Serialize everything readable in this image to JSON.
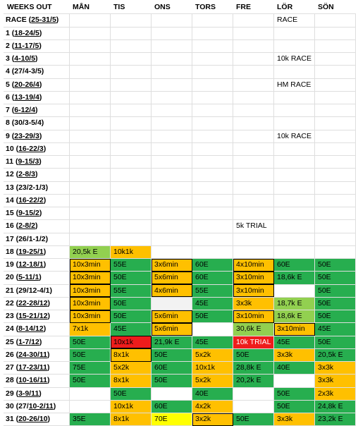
{
  "colors": {
    "dark_green": "#27ae4f",
    "light_green": "#92d050",
    "orange": "#ffc000",
    "red": "#ee1c1c",
    "yellow": "#ffff00",
    "light_gray": "#f2f2f2",
    "white": "#ffffff"
  },
  "headers": [
    "WEEKS OUT",
    "MÅN",
    "TIS",
    "ONS",
    "TORS",
    "FRE",
    "LÖR",
    "SÖN"
  ],
  "rows": [
    {
      "pre": "RACE (",
      "dates": "25-31/5",
      "post": ")",
      "cells": [
        {
          "t": ""
        },
        {
          "t": ""
        },
        {
          "t": ""
        },
        {
          "t": ""
        },
        {
          "t": ""
        },
        {
          "t": "RACE"
        },
        {
          "t": ""
        }
      ]
    },
    {
      "pre": "1 (",
      "dates": "18-24/5",
      "post": ")",
      "cells": [
        {
          "t": ""
        },
        {
          "t": ""
        },
        {
          "t": ""
        },
        {
          "t": ""
        },
        {
          "t": ""
        },
        {
          "t": ""
        },
        {
          "t": ""
        }
      ]
    },
    {
      "pre": "2 (",
      "dates": "11-17/5",
      "post": ")",
      "cells": [
        {
          "t": ""
        },
        {
          "t": ""
        },
        {
          "t": ""
        },
        {
          "t": ""
        },
        {
          "t": ""
        },
        {
          "t": ""
        },
        {
          "t": ""
        }
      ]
    },
    {
      "pre": "3 (",
      "dates": "4-10/5",
      "post": ")",
      "cells": [
        {
          "t": ""
        },
        {
          "t": ""
        },
        {
          "t": ""
        },
        {
          "t": ""
        },
        {
          "t": ""
        },
        {
          "t": "10k RACE"
        },
        {
          "t": ""
        }
      ]
    },
    {
      "pre": "4 (27/4-3/5)",
      "dates": "",
      "post": "",
      "cells": [
        {
          "t": ""
        },
        {
          "t": ""
        },
        {
          "t": ""
        },
        {
          "t": ""
        },
        {
          "t": ""
        },
        {
          "t": ""
        },
        {
          "t": ""
        }
      ]
    },
    {
      "pre": "5 (",
      "dates": "20-26/4",
      "post": ")",
      "cells": [
        {
          "t": ""
        },
        {
          "t": ""
        },
        {
          "t": ""
        },
        {
          "t": ""
        },
        {
          "t": ""
        },
        {
          "t": "HM RACE"
        },
        {
          "t": ""
        }
      ]
    },
    {
      "pre": "6 (",
      "dates": "13-19/4",
      "post": ")",
      "cells": [
        {
          "t": ""
        },
        {
          "t": ""
        },
        {
          "t": ""
        },
        {
          "t": ""
        },
        {
          "t": ""
        },
        {
          "t": ""
        },
        {
          "t": ""
        }
      ]
    },
    {
      "pre": "7 (",
      "dates": "6-12/4",
      "post": ")",
      "cells": [
        {
          "t": ""
        },
        {
          "t": ""
        },
        {
          "t": ""
        },
        {
          "t": ""
        },
        {
          "t": ""
        },
        {
          "t": ""
        },
        {
          "t": ""
        }
      ]
    },
    {
      "pre": "8 (30/3-5/4)",
      "dates": "",
      "post": "",
      "cells": [
        {
          "t": ""
        },
        {
          "t": ""
        },
        {
          "t": ""
        },
        {
          "t": ""
        },
        {
          "t": ""
        },
        {
          "t": ""
        },
        {
          "t": ""
        }
      ]
    },
    {
      "pre": "9 (",
      "dates": "23-29/3",
      "post": ")",
      "cells": [
        {
          "t": ""
        },
        {
          "t": ""
        },
        {
          "t": ""
        },
        {
          "t": ""
        },
        {
          "t": ""
        },
        {
          "t": "10k RACE"
        },
        {
          "t": ""
        }
      ]
    },
    {
      "pre": "10 (",
      "dates": "16-22/3",
      "post": ")",
      "cells": [
        {
          "t": ""
        },
        {
          "t": ""
        },
        {
          "t": ""
        },
        {
          "t": ""
        },
        {
          "t": ""
        },
        {
          "t": ""
        },
        {
          "t": ""
        }
      ]
    },
    {
      "pre": "11 (",
      "dates": "9-15/3",
      "post": ")",
      "cells": [
        {
          "t": ""
        },
        {
          "t": ""
        },
        {
          "t": ""
        },
        {
          "t": ""
        },
        {
          "t": ""
        },
        {
          "t": ""
        },
        {
          "t": ""
        }
      ]
    },
    {
      "pre": "12 (",
      "dates": "2-8/3",
      "post": ")",
      "cells": [
        {
          "t": ""
        },
        {
          "t": ""
        },
        {
          "t": ""
        },
        {
          "t": ""
        },
        {
          "t": ""
        },
        {
          "t": ""
        },
        {
          "t": ""
        }
      ]
    },
    {
      "pre": "13 (23/2-1/3)",
      "dates": "",
      "post": "",
      "cells": [
        {
          "t": ""
        },
        {
          "t": ""
        },
        {
          "t": ""
        },
        {
          "t": ""
        },
        {
          "t": ""
        },
        {
          "t": ""
        },
        {
          "t": ""
        }
      ]
    },
    {
      "pre": "14 (",
      "dates": "16-22/2",
      "post": ")",
      "cells": [
        {
          "t": ""
        },
        {
          "t": ""
        },
        {
          "t": ""
        },
        {
          "t": ""
        },
        {
          "t": ""
        },
        {
          "t": ""
        },
        {
          "t": ""
        }
      ]
    },
    {
      "pre": "15 (",
      "dates": "9-15/2",
      "post": ")",
      "cells": [
        {
          "t": ""
        },
        {
          "t": ""
        },
        {
          "t": ""
        },
        {
          "t": ""
        },
        {
          "t": ""
        },
        {
          "t": ""
        },
        {
          "t": ""
        }
      ]
    },
    {
      "pre": "16 (",
      "dates": "2-8/2",
      "post": ")",
      "cells": [
        {
          "t": ""
        },
        {
          "t": ""
        },
        {
          "t": ""
        },
        {
          "t": ""
        },
        {
          "t": "5k TRIAL"
        },
        {
          "t": ""
        },
        {
          "t": ""
        }
      ]
    },
    {
      "pre": "17 (26/1-1/2)",
      "dates": "",
      "post": "",
      "cells": [
        {
          "t": ""
        },
        {
          "t": ""
        },
        {
          "t": ""
        },
        {
          "t": ""
        },
        {
          "t": ""
        },
        {
          "t": ""
        },
        {
          "t": ""
        }
      ]
    },
    {
      "pre": "18 (",
      "dates": "19-25/1",
      "post": ")",
      "cells": [
        {
          "t": "20,5k E",
          "c": "light_green"
        },
        {
          "t": "10k1k",
          "c": "orange"
        },
        {
          "t": ""
        },
        {
          "t": ""
        },
        {
          "t": ""
        },
        {
          "t": ""
        },
        {
          "t": ""
        }
      ]
    },
    {
      "pre": "19 (",
      "dates": "12-18/1",
      "post": ")",
      "cells": [
        {
          "t": "10x3min",
          "c": "orange",
          "b": 1
        },
        {
          "t": "55E",
          "c": "dark_green"
        },
        {
          "t": "3x6min",
          "c": "orange",
          "b": 1
        },
        {
          "t": "60E",
          "c": "dark_green"
        },
        {
          "t": "4x10min",
          "c": "orange",
          "b": 1
        },
        {
          "t": "60E",
          "c": "dark_green"
        },
        {
          "t": "50E",
          "c": "dark_green"
        }
      ]
    },
    {
      "pre": "20 (",
      "dates": "5-11/1",
      "post": ")",
      "cells": [
        {
          "t": "10x3min",
          "c": "orange",
          "b": 1
        },
        {
          "t": "50E",
          "c": "dark_green"
        },
        {
          "t": "5x6min",
          "c": "orange",
          "b": 1
        },
        {
          "t": "60E",
          "c": "dark_green"
        },
        {
          "t": "3x10min",
          "c": "orange",
          "b": 1
        },
        {
          "t": "18,6k E",
          "c": "dark_green"
        },
        {
          "t": "50E",
          "c": "dark_green"
        }
      ]
    },
    {
      "pre": "21 (29/12-4/1)",
      "dates": "",
      "post": "",
      "cells": [
        {
          "t": "10x3min",
          "c": "orange",
          "b": 1
        },
        {
          "t": "55E",
          "c": "dark_green"
        },
        {
          "t": "4x6min",
          "c": "orange",
          "b": 1
        },
        {
          "t": "55E",
          "c": "dark_green"
        },
        {
          "t": "3x10min",
          "c": "orange",
          "b": 1
        },
        {
          "t": "",
          "c": "white"
        },
        {
          "t": "50E",
          "c": "dark_green"
        }
      ]
    },
    {
      "pre": "22 (",
      "dates": "22-28/12",
      "post": ")",
      "cells": [
        {
          "t": "10x3min",
          "c": "orange",
          "b": 1
        },
        {
          "t": "50E",
          "c": "dark_green"
        },
        {
          "t": "",
          "c": "light_gray"
        },
        {
          "t": "45E",
          "c": "dark_green"
        },
        {
          "t": "3x3k",
          "c": "orange"
        },
        {
          "t": "18,7k E",
          "c": "light_green"
        },
        {
          "t": "50E",
          "c": "dark_green"
        }
      ]
    },
    {
      "pre": "23 (",
      "dates": "15-21/12",
      "post": ")",
      "cells": [
        {
          "t": "10x3min",
          "c": "orange",
          "b": 1
        },
        {
          "t": "50E",
          "c": "dark_green"
        },
        {
          "t": "5x6min",
          "c": "orange",
          "b": 1
        },
        {
          "t": "50E",
          "c": "dark_green"
        },
        {
          "t": "3x10min",
          "c": "orange",
          "b": 1
        },
        {
          "t": "18,6k E",
          "c": "light_green"
        },
        {
          "t": "50E",
          "c": "dark_green"
        }
      ]
    },
    {
      "pre": "24 (",
      "dates": "8-14/12",
      "post": ")",
      "cells": [
        {
          "t": "7x1k",
          "c": "orange"
        },
        {
          "t": "45E",
          "c": "dark_green"
        },
        {
          "t": "5x6min",
          "c": "orange",
          "b": 1
        },
        {
          "t": "",
          "c": "white"
        },
        {
          "t": "30,6k E",
          "c": "light_green"
        },
        {
          "t": "3x10min",
          "c": "orange",
          "b": 1
        },
        {
          "t": "45E",
          "c": "dark_green"
        }
      ]
    },
    {
      "pre": "25 (",
      "dates": "1-7/12",
      "post": ")",
      "cells": [
        {
          "t": "50E",
          "c": "dark_green"
        },
        {
          "t": "10x1k",
          "c": "red",
          "b": 1
        },
        {
          "t": "21,9k E",
          "c": "dark_green"
        },
        {
          "t": "45E",
          "c": "dark_green"
        },
        {
          "t": "10k TRIAL",
          "c": "red",
          "white": 1
        },
        {
          "t": "45E",
          "c": "dark_green"
        },
        {
          "t": "50E",
          "c": "dark_green"
        }
      ]
    },
    {
      "pre": "26 (",
      "dates": "24-30/11",
      "post": ")",
      "cells": [
        {
          "t": "50E",
          "c": "dark_green"
        },
        {
          "t": "8x1k",
          "c": "orange",
          "b": 1
        },
        {
          "t": "50E",
          "c": "dark_green"
        },
        {
          "t": "5x2k",
          "c": "orange"
        },
        {
          "t": "50E",
          "c": "dark_green"
        },
        {
          "t": "3x3k",
          "c": "orange"
        },
        {
          "t": "20,5k E",
          "c": "dark_green"
        }
      ]
    },
    {
      "pre": "27 (",
      "dates": "17-23/11",
      "post": ")",
      "cells": [
        {
          "t": "75E",
          "c": "dark_green"
        },
        {
          "t": "5x2k",
          "c": "orange"
        },
        {
          "t": "60E",
          "c": "dark_green"
        },
        {
          "t": "10x1k",
          "c": "orange"
        },
        {
          "t": "28,8k E",
          "c": "dark_green"
        },
        {
          "t": "40E",
          "c": "dark_green"
        },
        {
          "t": "3x3k",
          "c": "orange"
        }
      ]
    },
    {
      "pre": "28 (",
      "dates": "10-16/11",
      "post": ")",
      "cells": [
        {
          "t": "50E",
          "c": "dark_green"
        },
        {
          "t": "8x1k",
          "c": "orange"
        },
        {
          "t": "50E",
          "c": "dark_green"
        },
        {
          "t": "5x2k",
          "c": "orange"
        },
        {
          "t": "20,2k E",
          "c": "dark_green"
        },
        {
          "t": "",
          "c": "white"
        },
        {
          "t": "3x3k",
          "c": "orange"
        }
      ]
    },
    {
      "pre": "29 (",
      "dates": "3-9/11",
      "post": ")",
      "cells": [
        {
          "t": "",
          "c": "white"
        },
        {
          "t": "50E",
          "c": "dark_green"
        },
        {
          "t": "",
          "c": "white"
        },
        {
          "t": "40E",
          "c": "dark_green"
        },
        {
          "t": "",
          "c": "white"
        },
        {
          "t": "50E",
          "c": "dark_green"
        },
        {
          "t": "2x3k",
          "c": "orange"
        }
      ]
    },
    {
      "pre": "30 (27/",
      "dates": "10-2/11",
      "post": ")",
      "cells": [
        {
          "t": "",
          "c": "white"
        },
        {
          "t": "10x1k",
          "c": "orange"
        },
        {
          "t": "60E",
          "c": "dark_green"
        },
        {
          "t": "4x2k",
          "c": "orange"
        },
        {
          "t": "",
          "c": "white"
        },
        {
          "t": "50E",
          "c": "dark_green"
        },
        {
          "t": "24,8k E",
          "c": "dark_green"
        }
      ]
    },
    {
      "pre": "31 (",
      "dates": "20-26/10",
      "post": ")",
      "cells": [
        {
          "t": "35E",
          "c": "dark_green"
        },
        {
          "t": "8x1k",
          "c": "orange"
        },
        {
          "t": "70E",
          "c": "yellow"
        },
        {
          "t": "3x2k",
          "c": "orange",
          "b": 1
        },
        {
          "t": "50E",
          "c": "dark_green"
        },
        {
          "t": "3x3k",
          "c": "orange"
        },
        {
          "t": "23,2k E",
          "c": "dark_green"
        }
      ]
    }
  ]
}
